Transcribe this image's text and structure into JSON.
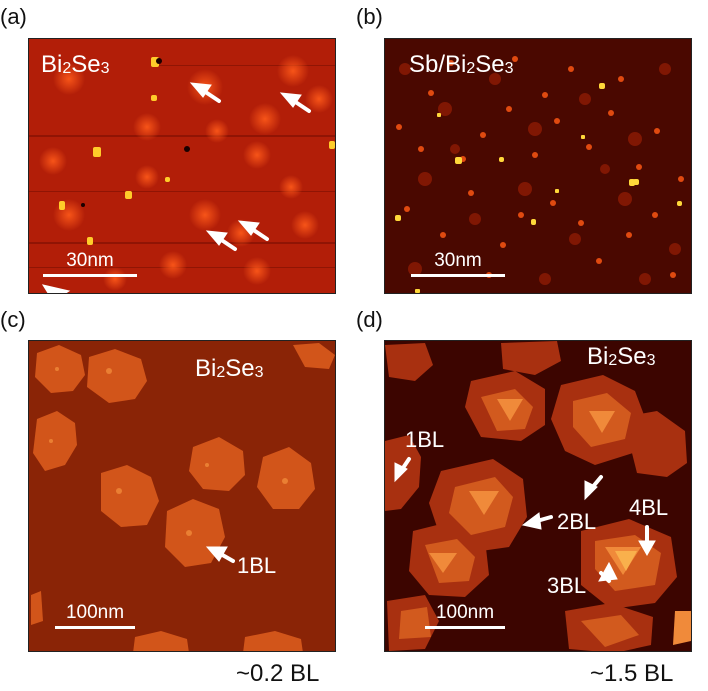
{
  "panels": {
    "a": {
      "letter": "(a)",
      "material": "Bi2Se3",
      "scale": "30nm"
    },
    "b": {
      "letter": "(b)",
      "material": "Sb/Bi2Se3",
      "scale": "30nm"
    },
    "c": {
      "letter": "(c)",
      "material": "Bi2Se3",
      "scale": "100nm",
      "arrow_label": "1BL"
    },
    "d": {
      "letter": "(d)",
      "material": "Bi2Se3",
      "scale": "100nm",
      "arrow_labels": {
        "bl1": "1BL",
        "bl2": "2BL",
        "bl3": "3BL",
        "bl4": "4BL"
      }
    }
  },
  "coverage": {
    "c": "~0.2 BL",
    "d": "~1.5 BL"
  },
  "colors": {
    "bg_a": "#b21e08",
    "bg_b": "#4a0800",
    "bg_c": "#8a2406",
    "bg_d": "#3c0500",
    "island_1": "#d25215",
    "island_2": "#e86a22",
    "island_3": "#f48c32",
    "island_4": "#f9b04c"
  }
}
